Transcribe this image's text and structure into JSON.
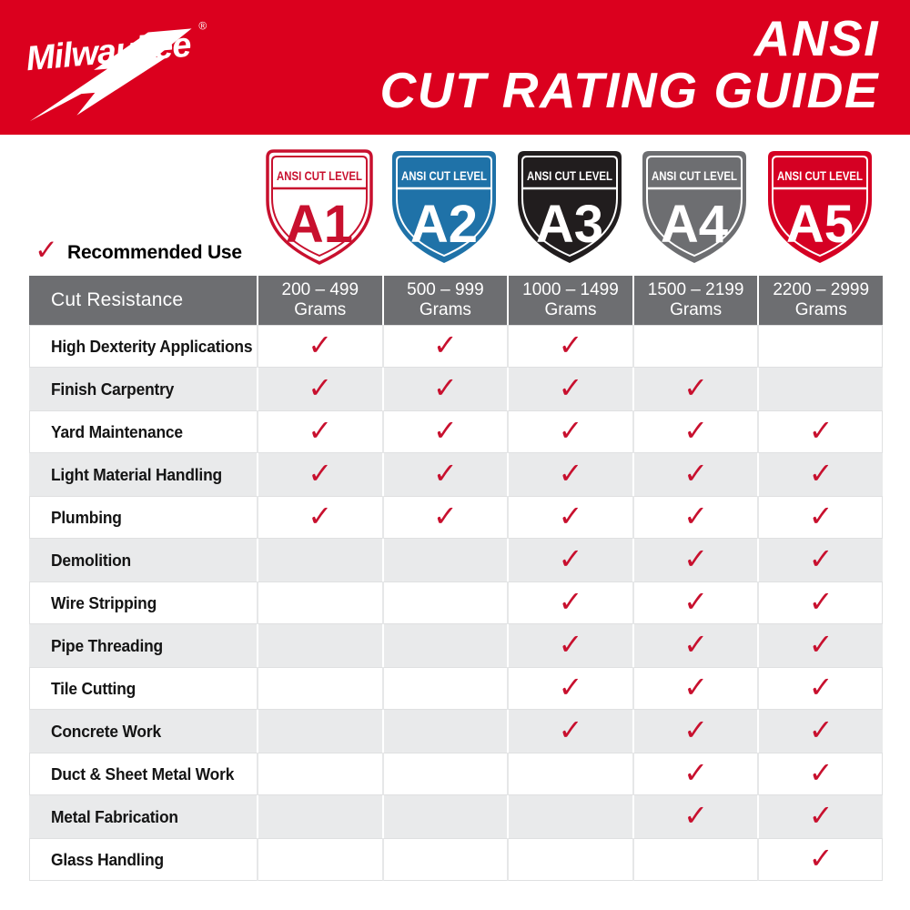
{
  "banner": {
    "brand": "Milwaukee",
    "reg_mark": "®",
    "title_line1": "ANSI",
    "title_line2": "CUT RATING GUIDE"
  },
  "shields": [
    {
      "level": "A1",
      "band": "ANSI CUT LEVEL",
      "fill": "#FFFFFF",
      "accent": "#C8102E"
    },
    {
      "level": "A2",
      "band": "ANSI CUT LEVEL",
      "fill": "#1F72A8",
      "accent": "#FFFFFF"
    },
    {
      "level": "A3",
      "band": "ANSI CUT LEVEL",
      "fill": "#211D1E",
      "accent": "#FFFFFF"
    },
    {
      "level": "A4",
      "band": "ANSI CUT LEVEL",
      "fill": "#6D6E71",
      "accent": "#FFFFFF"
    },
    {
      "level": "A5",
      "band": "ANSI CUT LEVEL",
      "fill": "#D50023",
      "accent": "#FFFFFF"
    }
  ],
  "legend": {
    "check_glyph": "✓",
    "label": "Recommended Use"
  },
  "chart_data": {
    "type": "table",
    "title": "ANSI CUT RATING GUIDE",
    "header_label": "Cut Resistance",
    "column_headers": [
      {
        "level": "A1",
        "range": "200 – 499",
        "unit": "Grams"
      },
      {
        "level": "A2",
        "range": "500 – 999",
        "unit": "Grams"
      },
      {
        "level": "A3",
        "range": "1000 – 1499",
        "unit": "Grams"
      },
      {
        "level": "A4",
        "range": "1500 – 2199",
        "unit": "Grams"
      },
      {
        "level": "A5",
        "range": "2200 – 2999",
        "unit": "Grams"
      }
    ],
    "check_glyph": "✓",
    "rows": [
      {
        "label": "High Dexterity Applications",
        "checks": [
          true,
          true,
          true,
          false,
          false
        ]
      },
      {
        "label": "Finish Carpentry",
        "checks": [
          true,
          true,
          true,
          true,
          false
        ]
      },
      {
        "label": "Yard Maintenance",
        "checks": [
          true,
          true,
          true,
          true,
          true
        ]
      },
      {
        "label": "Light Material Handling",
        "checks": [
          true,
          true,
          true,
          true,
          true
        ]
      },
      {
        "label": "Plumbing",
        "checks": [
          true,
          true,
          true,
          true,
          true
        ]
      },
      {
        "label": "Demolition",
        "checks": [
          false,
          false,
          true,
          true,
          true
        ]
      },
      {
        "label": "Wire Stripping",
        "checks": [
          false,
          false,
          true,
          true,
          true
        ]
      },
      {
        "label": "Pipe Threading",
        "checks": [
          false,
          false,
          true,
          true,
          true
        ]
      },
      {
        "label": "Tile Cutting",
        "checks": [
          false,
          false,
          true,
          true,
          true
        ]
      },
      {
        "label": "Concrete Work",
        "checks": [
          false,
          false,
          true,
          true,
          true
        ]
      },
      {
        "label": "Duct & Sheet Metal Work",
        "checks": [
          false,
          false,
          false,
          true,
          true
        ]
      },
      {
        "label": "Metal Fabrication",
        "checks": [
          false,
          false,
          false,
          true,
          true
        ]
      },
      {
        "label": "Glass Handling",
        "checks": [
          false,
          false,
          false,
          false,
          true
        ]
      }
    ]
  },
  "colors": {
    "banner_red": "#DB001E",
    "check_red": "#C8102E",
    "header_gray": "#6D6E71",
    "row_alt": "#E9EAEB",
    "text_black": "#141414"
  }
}
